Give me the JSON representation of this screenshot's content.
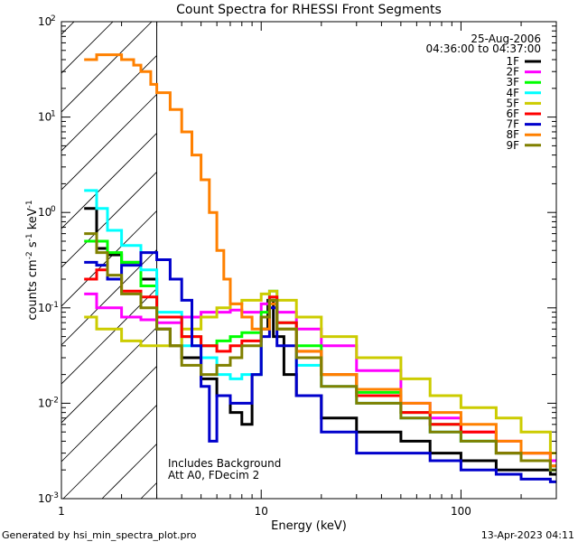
{
  "chart_data": {
    "type": "line",
    "title": "Count Spectra for RHESSI Front Segments",
    "xlabel": "Energy (keV)",
    "ylabel_base": "counts cm",
    "ylabel_sup1": "-2",
    "ylabel_mid": " s",
    "ylabel_sup2": "-1",
    "ylabel_end": " keV",
    "ylabel_sup3": "-1",
    "xscale": "log",
    "yscale": "log",
    "xlim": [
      1,
      300
    ],
    "ylim": [
      0.001,
      100
    ],
    "x_ticks": [
      {
        "value": 1,
        "label": "1"
      },
      {
        "value": 10,
        "label": "10"
      },
      {
        "value": 100,
        "label": "100"
      }
    ],
    "y_ticks": [
      {
        "value": 100,
        "base": "10",
        "exp": "2"
      },
      {
        "value": 10,
        "base": "10",
        "exp": "1"
      },
      {
        "value": 1,
        "base": "10",
        "exp": "0"
      },
      {
        "value": 0.1,
        "base": "10",
        "exp": "-1"
      },
      {
        "value": 0.01,
        "base": "10",
        "exp": "-2"
      },
      {
        "value": 0.001,
        "base": "10",
        "exp": "-3"
      }
    ],
    "date": "25-Aug-2006",
    "time_range": "04:36:00 to 04:37:00",
    "shaded_region_max_kev": 3,
    "annotation_line1": "Includes Background",
    "annotation_line2": "Att A0, FDecim 2",
    "series": [
      {
        "name": "1F",
        "color": "#000000",
        "points": [
          [
            1.3,
            1.1
          ],
          [
            1.5,
            0.42
          ],
          [
            1.7,
            0.36
          ],
          [
            2,
            0.3
          ],
          [
            2.5,
            0.2
          ],
          [
            3,
            0.06
          ],
          [
            3.5,
            0.04
          ],
          [
            4,
            0.03
          ],
          [
            5,
            0.018
          ],
          [
            6,
            0.012
          ],
          [
            7,
            0.008
          ],
          [
            8,
            0.006
          ],
          [
            9,
            0.02
          ],
          [
            10,
            0.06
          ],
          [
            10.8,
            0.12
          ],
          [
            11.5,
            0.05
          ],
          [
            13,
            0.02
          ],
          [
            15,
            0.012
          ],
          [
            20,
            0.007
          ],
          [
            30,
            0.005
          ],
          [
            50,
            0.004
          ],
          [
            70,
            0.003
          ],
          [
            100,
            0.0025
          ],
          [
            150,
            0.002
          ],
          [
            200,
            0.002
          ],
          [
            280,
            0.0018
          ]
        ]
      },
      {
        "name": "2F",
        "color": "#ff00ff",
        "points": [
          [
            1.3,
            0.14
          ],
          [
            1.5,
            0.1
          ],
          [
            2,
            0.08
          ],
          [
            2.5,
            0.075
          ],
          [
            3,
            0.07
          ],
          [
            4,
            0.08
          ],
          [
            5,
            0.09
          ],
          [
            6,
            0.09
          ],
          [
            7,
            0.095
          ],
          [
            8,
            0.09
          ],
          [
            10,
            0.11
          ],
          [
            11,
            0.12
          ],
          [
            12,
            0.09
          ],
          [
            15,
            0.06
          ],
          [
            20,
            0.04
          ],
          [
            30,
            0.022
          ],
          [
            50,
            0.01
          ],
          [
            70,
            0.007
          ],
          [
            100,
            0.005
          ],
          [
            150,
            0.004
          ],
          [
            200,
            0.003
          ],
          [
            280,
            0.0025
          ]
        ]
      },
      {
        "name": "3F",
        "color": "#00ff00",
        "points": [
          [
            1.3,
            0.5
          ],
          [
            1.5,
            0.5
          ],
          [
            1.7,
            0.38
          ],
          [
            2,
            0.3
          ],
          [
            2.5,
            0.17
          ],
          [
            3,
            0.08
          ],
          [
            4,
            0.05
          ],
          [
            5,
            0.04
          ],
          [
            6,
            0.045
          ],
          [
            7,
            0.05
          ],
          [
            8,
            0.055
          ],
          [
            10,
            0.09
          ],
          [
            11,
            0.12
          ],
          [
            12,
            0.07
          ],
          [
            15,
            0.04
          ],
          [
            20,
            0.02
          ],
          [
            30,
            0.013
          ],
          [
            50,
            0.008
          ],
          [
            70,
            0.006
          ],
          [
            100,
            0.004
          ],
          [
            150,
            0.003
          ],
          [
            200,
            0.0025
          ],
          [
            280,
            0.002
          ]
        ]
      },
      {
        "name": "4F",
        "color": "#00ffff",
        "points": [
          [
            1.3,
            1.7
          ],
          [
            1.5,
            1.1
          ],
          [
            1.7,
            0.65
          ],
          [
            2,
            0.45
          ],
          [
            2.5,
            0.25
          ],
          [
            3,
            0.09
          ],
          [
            4,
            0.04
          ],
          [
            5,
            0.03
          ],
          [
            6,
            0.02
          ],
          [
            7,
            0.018
          ],
          [
            8,
            0.02
          ],
          [
            10,
            0.08
          ],
          [
            11,
            0.15
          ],
          [
            12,
            0.06
          ],
          [
            15,
            0.025
          ],
          [
            20,
            0.015
          ],
          [
            30,
            0.01
          ],
          [
            50,
            0.007
          ],
          [
            70,
            0.005
          ],
          [
            100,
            0.004
          ],
          [
            150,
            0.003
          ],
          [
            200,
            0.0025
          ],
          [
            280,
            0.002
          ]
        ]
      },
      {
        "name": "5F",
        "color": "#cccc00",
        "points": [
          [
            1.3,
            0.08
          ],
          [
            1.5,
            0.06
          ],
          [
            2,
            0.045
          ],
          [
            2.5,
            0.04
          ],
          [
            3,
            0.04
          ],
          [
            4,
            0.06
          ],
          [
            5,
            0.08
          ],
          [
            6,
            0.1
          ],
          [
            7,
            0.11
          ],
          [
            8,
            0.12
          ],
          [
            10,
            0.14
          ],
          [
            11,
            0.15
          ],
          [
            12,
            0.12
          ],
          [
            15,
            0.08
          ],
          [
            20,
            0.05
          ],
          [
            30,
            0.03
          ],
          [
            50,
            0.018
          ],
          [
            70,
            0.012
          ],
          [
            100,
            0.009
          ],
          [
            150,
            0.007
          ],
          [
            200,
            0.005
          ],
          [
            280,
            0.003
          ]
        ]
      },
      {
        "name": "6F",
        "color": "#ff0000",
        "points": [
          [
            1.3,
            0.2
          ],
          [
            1.5,
            0.25
          ],
          [
            1.7,
            0.2
          ],
          [
            2,
            0.15
          ],
          [
            2.5,
            0.13
          ],
          [
            3,
            0.08
          ],
          [
            4,
            0.05
          ],
          [
            5,
            0.04
          ],
          [
            6,
            0.035
          ],
          [
            7,
            0.04
          ],
          [
            8,
            0.045
          ],
          [
            10,
            0.08
          ],
          [
            11,
            0.13
          ],
          [
            12,
            0.07
          ],
          [
            15,
            0.035
          ],
          [
            20,
            0.02
          ],
          [
            30,
            0.012
          ],
          [
            50,
            0.008
          ],
          [
            70,
            0.006
          ],
          [
            100,
            0.005
          ],
          [
            150,
            0.003
          ],
          [
            200,
            0.003
          ],
          [
            280,
            0.0022
          ]
        ]
      },
      {
        "name": "7F",
        "color": "#0000cc",
        "points": [
          [
            1.3,
            0.3
          ],
          [
            1.5,
            0.28
          ],
          [
            1.7,
            0.2
          ],
          [
            2,
            0.28
          ],
          [
            2.5,
            0.38
          ],
          [
            3,
            0.32
          ],
          [
            3.5,
            0.2
          ],
          [
            4,
            0.12
          ],
          [
            4.5,
            0.04
          ],
          [
            5,
            0.015
          ],
          [
            5.5,
            0.004
          ],
          [
            6,
            0.012
          ],
          [
            7,
            0.01
          ],
          [
            8,
            0.01
          ],
          [
            9,
            0.02
          ],
          [
            10,
            0.05
          ],
          [
            11,
            0.1
          ],
          [
            12,
            0.04
          ],
          [
            15,
            0.012
          ],
          [
            20,
            0.005
          ],
          [
            30,
            0.003
          ],
          [
            50,
            0.003
          ],
          [
            70,
            0.0025
          ],
          [
            100,
            0.002
          ],
          [
            150,
            0.0018
          ],
          [
            200,
            0.0016
          ],
          [
            280,
            0.0015
          ]
        ]
      },
      {
        "name": "8F",
        "color": "#ff8000",
        "points": [
          [
            1.3,
            40
          ],
          [
            1.5,
            45
          ],
          [
            1.7,
            45
          ],
          [
            2,
            40
          ],
          [
            2.3,
            35
          ],
          [
            2.5,
            30
          ],
          [
            2.8,
            22
          ],
          [
            3,
            18
          ],
          [
            3.5,
            12
          ],
          [
            4,
            7
          ],
          [
            4.5,
            4
          ],
          [
            5,
            2.2
          ],
          [
            5.5,
            1
          ],
          [
            6,
            0.4
          ],
          [
            6.5,
            0.2
          ],
          [
            7,
            0.11
          ],
          [
            8,
            0.08
          ],
          [
            9,
            0.06
          ],
          [
            10,
            0.06
          ],
          [
            11,
            0.11
          ],
          [
            12,
            0.06
          ],
          [
            15,
            0.035
          ],
          [
            20,
            0.02
          ],
          [
            30,
            0.014
          ],
          [
            50,
            0.01
          ],
          [
            70,
            0.008
          ],
          [
            100,
            0.006
          ],
          [
            150,
            0.004
          ],
          [
            200,
            0.003
          ],
          [
            280,
            0.0022
          ]
        ]
      },
      {
        "name": "9F",
        "color": "#808000",
        "points": [
          [
            1.3,
            0.6
          ],
          [
            1.5,
            0.38
          ],
          [
            1.7,
            0.22
          ],
          [
            2,
            0.14
          ],
          [
            2.5,
            0.1
          ],
          [
            3,
            0.06
          ],
          [
            3.5,
            0.04
          ],
          [
            4,
            0.025
          ],
          [
            5,
            0.02
          ],
          [
            6,
            0.025
          ],
          [
            7,
            0.03
          ],
          [
            8,
            0.04
          ],
          [
            10,
            0.08
          ],
          [
            11,
            0.12
          ],
          [
            12,
            0.06
          ],
          [
            15,
            0.03
          ],
          [
            20,
            0.015
          ],
          [
            30,
            0.01
          ],
          [
            50,
            0.007
          ],
          [
            70,
            0.005
          ],
          [
            100,
            0.004
          ],
          [
            150,
            0.003
          ],
          [
            200,
            0.0025
          ],
          [
            280,
            0.002
          ]
        ]
      }
    ]
  },
  "footer": {
    "generated_by": "Generated by hsi_min_spectra_plot.pro",
    "timestamp": "13-Apr-2023 04:11"
  }
}
